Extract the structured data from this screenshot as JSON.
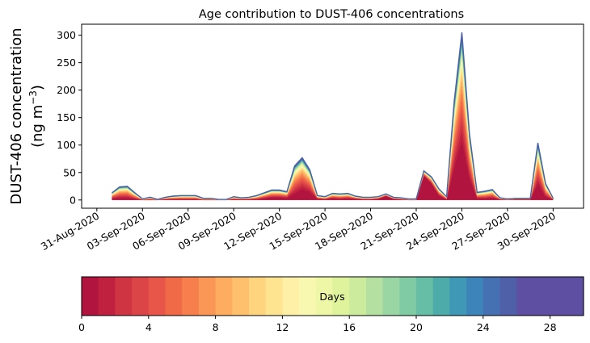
{
  "chart_data": {
    "type": "area",
    "title": "Age contribution to DUST-406 concentrations",
    "ylabel_line1": "DUST-406 concentration",
    "ylabel_line2": "(ng m",
    "ylabel_unit_exp": "−3",
    "ylabel_close": ")",
    "ylim": [
      -15,
      320
    ],
    "yticks": [
      0,
      50,
      100,
      150,
      200,
      250,
      300
    ],
    "xlim": [
      "2020-08-30",
      "2020-10-02"
    ],
    "xtick_dates": [
      "2020-08-31",
      "2020-09-03",
      "2020-09-06",
      "2020-09-09",
      "2020-09-12",
      "2020-09-15",
      "2020-09-18",
      "2020-09-21",
      "2020-09-24",
      "2020-09-27",
      "2020-09-30"
    ],
    "xtick_labels": [
      "31-Aug-2020",
      "03-Sep-2020",
      "06-Sep-2020",
      "09-Sep-2020",
      "12-Sep-2020",
      "15-Sep-2020",
      "18-Sep-2020",
      "21-Sep-2020",
      "24-Sep-2020",
      "27-Sep-2020",
      "30-Sep-2020"
    ],
    "x": [
      "2020-09-01",
      "2020-09-01 12:00",
      "2020-09-02",
      "2020-09-02 12:00",
      "2020-09-03",
      "2020-09-03 12:00",
      "2020-09-04",
      "2020-09-04 12:00",
      "2020-09-05",
      "2020-09-05 12:00",
      "2020-09-06",
      "2020-09-06 12:00",
      "2020-09-07",
      "2020-09-07 12:00",
      "2020-09-08",
      "2020-09-08 12:00",
      "2020-09-09",
      "2020-09-09 12:00",
      "2020-09-10",
      "2020-09-10 12:00",
      "2020-09-11",
      "2020-09-11 12:00",
      "2020-09-12",
      "2020-09-12 12:00",
      "2020-09-13",
      "2020-09-13 12:00",
      "2020-09-14",
      "2020-09-14 12:00",
      "2020-09-15",
      "2020-09-15 12:00",
      "2020-09-16",
      "2020-09-16 12:00",
      "2020-09-17",
      "2020-09-17 12:00",
      "2020-09-18",
      "2020-09-18 12:00",
      "2020-09-19",
      "2020-09-19 12:00",
      "2020-09-20",
      "2020-09-20 12:00",
      "2020-09-21",
      "2020-09-21 12:00",
      "2020-09-22",
      "2020-09-22 12:00",
      "2020-09-23",
      "2020-09-23 12:00",
      "2020-09-24",
      "2020-09-24 12:00",
      "2020-09-25",
      "2020-09-25 12:00",
      "2020-09-26",
      "2020-09-26 12:00",
      "2020-09-27",
      "2020-09-27 12:00",
      "2020-09-28",
      "2020-09-28 12:00",
      "2020-09-29",
      "2020-09-29 12:00",
      "2020-09-30",
      "2020-09-30 12:00",
      "2020-10-01"
    ],
    "total": [
      13,
      24,
      25,
      13,
      2,
      5,
      1,
      5,
      7,
      8,
      8,
      8,
      3,
      3,
      1,
      1,
      6,
      4,
      5,
      8,
      13,
      18,
      18,
      15,
      62,
      77,
      55,
      8,
      6,
      12,
      11,
      12,
      7,
      5,
      5,
      6,
      11,
      5,
      4,
      2,
      2,
      53,
      42,
      20,
      6,
      180,
      305,
      120,
      14,
      16,
      19,
      4,
      2,
      3,
      3,
      3,
      104,
      30,
      3,
      null,
      null
    ],
    "fresh": [
      3,
      4,
      4,
      2,
      0,
      0,
      0,
      1,
      1,
      1,
      1,
      1,
      0,
      0,
      0,
      0,
      1,
      1,
      1,
      1,
      3,
      5,
      5,
      4,
      12,
      20,
      15,
      2,
      1,
      3,
      2,
      3,
      2,
      1,
      1,
      2,
      7,
      2,
      1,
      0,
      0,
      44,
      30,
      8,
      1,
      60,
      110,
      40,
      3,
      3,
      4,
      1,
      0,
      1,
      1,
      1,
      30,
      6,
      1,
      null,
      null
    ],
    "day_shares": [
      0.1,
      0.09,
      0.08,
      0.075,
      0.07,
      0.065,
      0.06,
      0.055,
      0.05,
      0.045,
      0.04,
      0.035,
      0.03,
      0.028,
      0.026,
      0.024,
      0.022,
      0.02,
      0.018,
      0.016,
      0.015,
      0.014,
      0.013,
      0.012,
      0.011,
      0.01,
      0.009,
      0.008,
      0.007,
      0.006
    ],
    "colorbar": {
      "label": "Days",
      "range": [
        0,
        30
      ],
      "ticks": [
        0,
        4,
        8,
        12,
        16,
        20,
        24,
        28
      ],
      "colors": [
        "#b0143f",
        "#c0213f",
        "#cf3443",
        "#dc4548",
        "#e8564a",
        "#f16a47",
        "#f67f4d",
        "#fa9656",
        "#fdac60",
        "#fec06d",
        "#fed47f",
        "#fee391",
        "#fef0a7",
        "#f9f8b1",
        "#eef7a6",
        "#dff29c",
        "#cceb9d",
        "#b4e1a1",
        "#9ad6a4",
        "#80cba4",
        "#66bea6",
        "#4daca9",
        "#3f98b5",
        "#3d84bb",
        "#4570b1",
        "#4f5fa8",
        "#5e4fa2",
        "#5e4fa2",
        "#5e4fa2",
        "#5e4fa2"
      ]
    }
  }
}
